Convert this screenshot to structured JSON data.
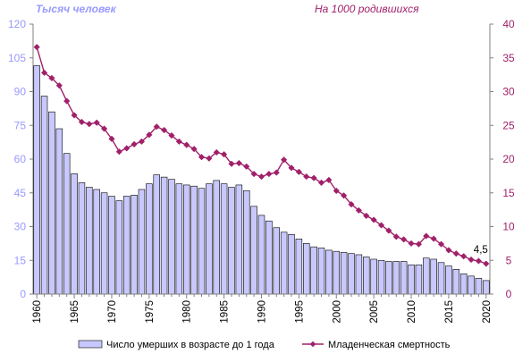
{
  "chart_data": {
    "type": "bar",
    "y_left_unit": "Тысяч человек",
    "y_right_unit": "На 1000 родившихся",
    "y_left_ticks": [
      "0",
      "15",
      "30",
      "45",
      "60",
      "75",
      "90",
      "105",
      "120"
    ],
    "y_right_ticks": [
      "0",
      "5",
      "10",
      "15",
      "20",
      "25",
      "30",
      "35",
      "40"
    ],
    "ylim_left": [
      0,
      120
    ],
    "ylim_right": [
      0,
      40
    ],
    "x": [
      1960,
      1961,
      1962,
      1963,
      1964,
      1965,
      1966,
      1967,
      1968,
      1969,
      1970,
      1971,
      1972,
      1973,
      1974,
      1975,
      1976,
      1977,
      1978,
      1979,
      1980,
      1981,
      1982,
      1983,
      1984,
      1985,
      1986,
      1987,
      1988,
      1989,
      1990,
      1991,
      1992,
      1993,
      1994,
      1995,
      1996,
      1997,
      1998,
      1999,
      2000,
      2001,
      2002,
      2003,
      2004,
      2005,
      2006,
      2007,
      2008,
      2009,
      2010,
      2011,
      2012,
      2013,
      2014,
      2015,
      2016,
      2017,
      2018,
      2019,
      2020
    ],
    "x_tick_labels": [
      "1960",
      "1965",
      "1970",
      "1975",
      "1980",
      "1985",
      "1990",
      "1995",
      "2000",
      "2005",
      "2010",
      "2015",
      "2020"
    ],
    "series": [
      {
        "name": "Число  умерших в возрасте до 1 года",
        "type": "bar",
        "axis": "left",
        "color": "#c8c8ff",
        "values": [
          101.5,
          88.0,
          81.0,
          73.5,
          62.5,
          53.5,
          49.5,
          47.5,
          46.5,
          45.0,
          43.5,
          41.5,
          43.5,
          44.0,
          46.5,
          49.0,
          53.0,
          52.0,
          51.0,
          49.0,
          48.5,
          48.0,
          47.0,
          49.0,
          50.5,
          49.0,
          47.5,
          48.5,
          46.0,
          39.0,
          35.0,
          32.5,
          29.5,
          27.5,
          26.5,
          24.5,
          22.5,
          21.0,
          20.5,
          19.5,
          19.0,
          18.5,
          18.0,
          17.5,
          16.5,
          15.5,
          15.0,
          14.5,
          14.5,
          14.5,
          13.0,
          13.0,
          16.0,
          15.5,
          14.0,
          12.5,
          11.0,
          9.0,
          8.0,
          7.0,
          6.0
        ]
      },
      {
        "name": "Младенческая  смертность",
        "type": "line",
        "axis": "right",
        "color": "#a0206a",
        "values": [
          36.6,
          32.8,
          32.0,
          30.9,
          28.6,
          26.5,
          25.5,
          25.2,
          25.4,
          24.5,
          23.0,
          21.1,
          21.6,
          22.2,
          22.6,
          23.6,
          24.8,
          24.3,
          23.5,
          22.6,
          22.1,
          21.5,
          20.3,
          20.1,
          21.0,
          20.7,
          19.3,
          19.4,
          18.9,
          17.8,
          17.4,
          17.8,
          18.0,
          19.9,
          18.7,
          18.1,
          17.4,
          17.2,
          16.5,
          16.9,
          15.3,
          14.6,
          13.3,
          12.4,
          11.6,
          11.0,
          10.2,
          9.4,
          8.5,
          8.1,
          7.5,
          7.4,
          8.6,
          8.2,
          7.4,
          6.5,
          6.0,
          5.6,
          5.1,
          4.9,
          4.5
        ]
      }
    ],
    "annotations": [
      {
        "text": "4,5",
        "x": 2020,
        "axis": "right",
        "value": 4.5
      }
    ],
    "grid": false,
    "legend_position": "bottom"
  }
}
